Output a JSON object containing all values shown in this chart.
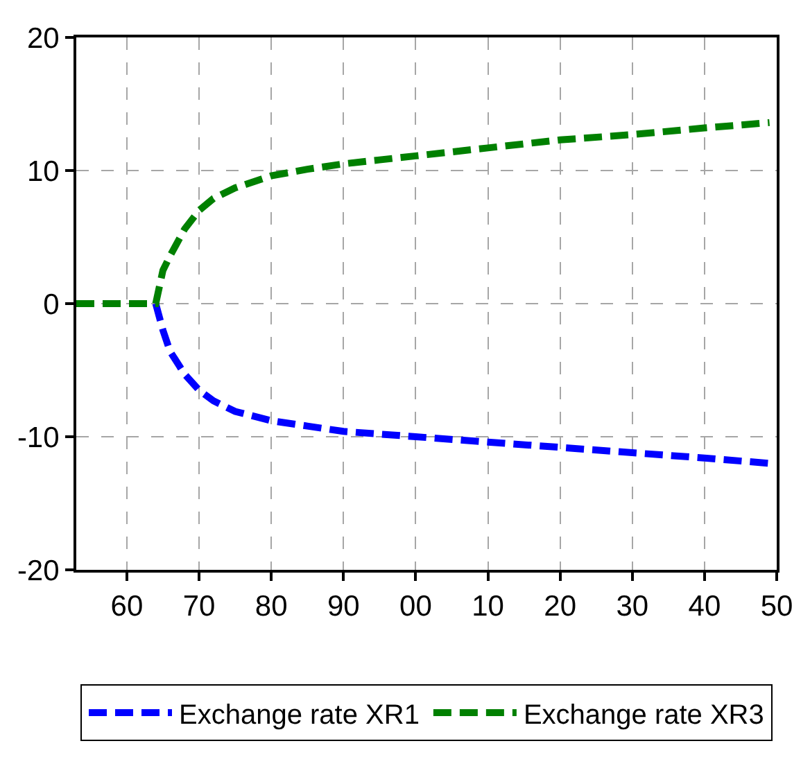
{
  "chart_data": {
    "type": "line",
    "xlim": [
      1953,
      2050
    ],
    "xticks": [
      {
        "value": 1960,
        "label": "60"
      },
      {
        "value": 1970,
        "label": "70"
      },
      {
        "value": 1980,
        "label": "80"
      },
      {
        "value": 1990,
        "label": "90"
      },
      {
        "value": 2000,
        "label": "00"
      },
      {
        "value": 2010,
        "label": "10"
      },
      {
        "value": 2020,
        "label": "20"
      },
      {
        "value": 2030,
        "label": "30"
      },
      {
        "value": 2040,
        "label": "40"
      },
      {
        "value": 2050,
        "label": "50"
      }
    ],
    "ylim": [
      -20,
      20
    ],
    "yticks": [
      -20,
      -10,
      0,
      10,
      20
    ],
    "grid": true,
    "legend": "bottom",
    "line_style": "dashed",
    "x": [
      1953,
      1963,
      1964,
      1965,
      1966,
      1968,
      1970,
      1972,
      1975,
      1980,
      1985,
      1990,
      1995,
      2000,
      2010,
      2020,
      2030,
      2040,
      2049
    ],
    "series": [
      {
        "name": "Exchange rate XR1",
        "color": "#0000ff",
        "values": [
          0,
          0,
          0,
          -2.0,
          -3.6,
          -5.3,
          -6.5,
          -7.3,
          -8.1,
          -8.8,
          -9.2,
          -9.6,
          -9.8,
          -10.0,
          -10.4,
          -10.8,
          -11.2,
          -11.6,
          -12.0
        ]
      },
      {
        "name": "Exchange rate XR3",
        "color": "#008000",
        "values": [
          0,
          0,
          0,
          2.5,
          3.6,
          5.6,
          7.0,
          7.9,
          8.7,
          9.6,
          10.1,
          10.5,
          10.8,
          11.1,
          11.7,
          12.3,
          12.7,
          13.2,
          13.6
        ]
      }
    ]
  }
}
